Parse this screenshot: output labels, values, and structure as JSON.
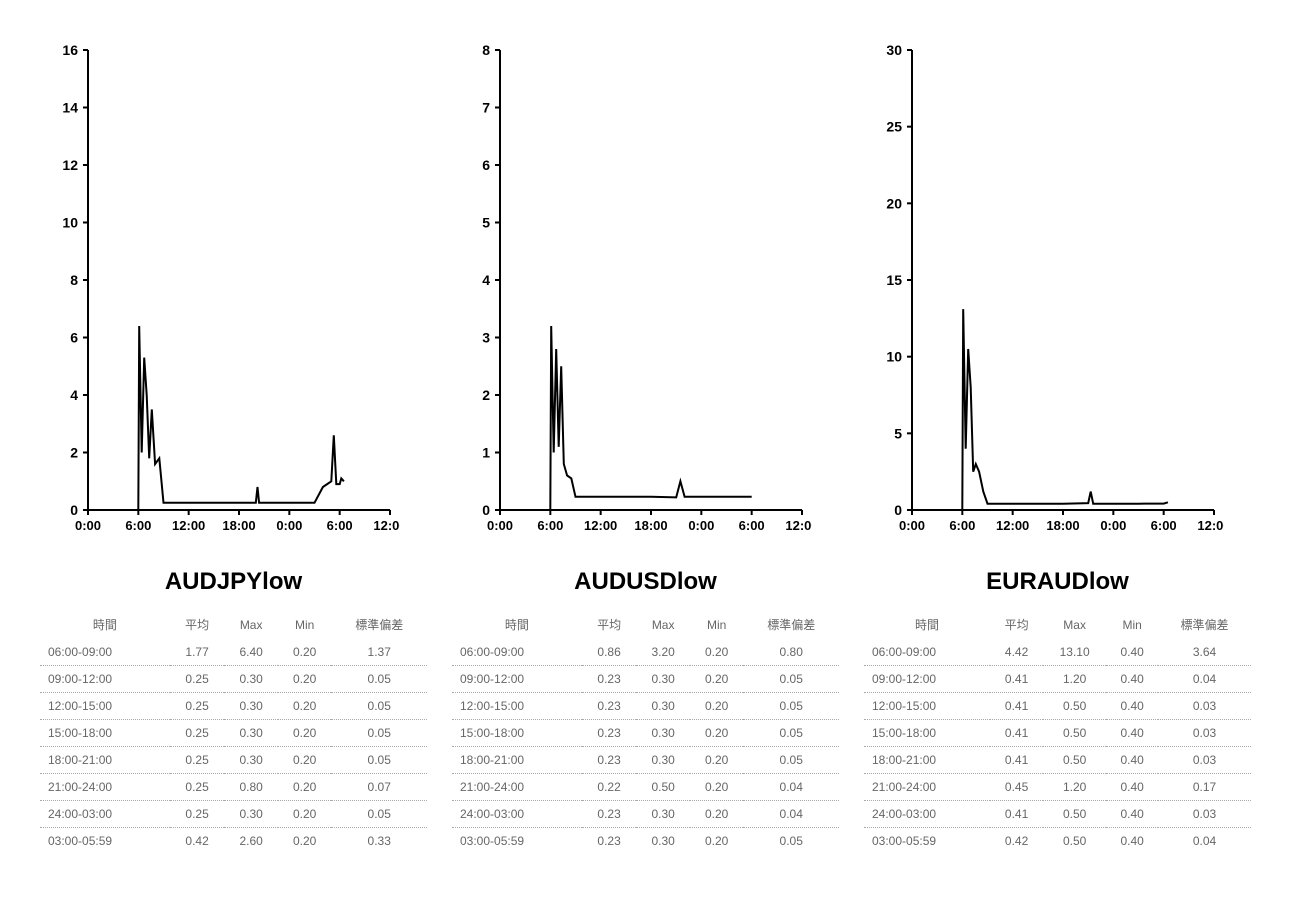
{
  "background_color": "#ffffff",
  "axis_color": "#000000",
  "line_color": "#000000",
  "text_color": "#666666",
  "dotted_border_color": "#aaaaaa",
  "table_headers": [
    "時間",
    "平均",
    "Max",
    "Min",
    "標準偏差"
  ],
  "x_labels": [
    "0:00",
    "6:00",
    "12:00",
    "18:00",
    "0:00",
    "6:00",
    "12:00"
  ],
  "x_ticks": [
    0,
    6,
    12,
    18,
    24,
    30,
    36
  ],
  "x_range": [
    0,
    36
  ],
  "panels": [
    {
      "title": "AUDJPYlow",
      "y_range": [
        0,
        16
      ],
      "y_tick_step": 2,
      "y_ticks": [
        0,
        2,
        4,
        6,
        8,
        10,
        12,
        14,
        16
      ],
      "series": [
        [
          0,
          0
        ],
        [
          6,
          0
        ],
        [
          6.1,
          6.4
        ],
        [
          6.4,
          2.0
        ],
        [
          6.7,
          5.3
        ],
        [
          7.0,
          4.0
        ],
        [
          7.3,
          1.8
        ],
        [
          7.6,
          3.5
        ],
        [
          8.0,
          1.6
        ],
        [
          8.5,
          1.8
        ],
        [
          9,
          0.25
        ],
        [
          12,
          0.25
        ],
        [
          15,
          0.25
        ],
        [
          18,
          0.25
        ],
        [
          20,
          0.25
        ],
        [
          20.2,
          0.8
        ],
        [
          20.4,
          0.25
        ],
        [
          22,
          0.25
        ],
        [
          24,
          0.25
        ],
        [
          27,
          0.25
        ],
        [
          28,
          0.8
        ],
        [
          29,
          1.0
        ],
        [
          29.3,
          2.6
        ],
        [
          29.6,
          0.9
        ],
        [
          30,
          0.9
        ],
        [
          30.2,
          1.1
        ],
        [
          30.5,
          1.0
        ]
      ],
      "rows": [
        [
          "06:00-09:00",
          "1.77",
          "6.40",
          "0.20",
          "1.37"
        ],
        [
          "09:00-12:00",
          "0.25",
          "0.30",
          "0.20",
          "0.05"
        ],
        [
          "12:00-15:00",
          "0.25",
          "0.30",
          "0.20",
          "0.05"
        ],
        [
          "15:00-18:00",
          "0.25",
          "0.30",
          "0.20",
          "0.05"
        ],
        [
          "18:00-21:00",
          "0.25",
          "0.30",
          "0.20",
          "0.05"
        ],
        [
          "21:00-24:00",
          "0.25",
          "0.80",
          "0.20",
          "0.07"
        ],
        [
          "24:00-03:00",
          "0.25",
          "0.30",
          "0.20",
          "0.05"
        ],
        [
          "03:00-05:59",
          "0.42",
          "2.60",
          "0.20",
          "0.33"
        ]
      ]
    },
    {
      "title": "AUDUSDlow",
      "y_range": [
        0,
        8
      ],
      "y_tick_step": 1,
      "y_ticks": [
        0,
        1,
        2,
        3,
        4,
        5,
        6,
        7,
        8
      ],
      "series": [
        [
          0,
          0
        ],
        [
          6,
          0
        ],
        [
          6.1,
          3.2
        ],
        [
          6.4,
          1.0
        ],
        [
          6.7,
          2.8
        ],
        [
          7.0,
          1.1
        ],
        [
          7.3,
          2.5
        ],
        [
          7.6,
          0.8
        ],
        [
          8.0,
          0.6
        ],
        [
          8.5,
          0.55
        ],
        [
          9,
          0.23
        ],
        [
          12,
          0.23
        ],
        [
          15,
          0.23
        ],
        [
          18,
          0.23
        ],
        [
          21,
          0.22
        ],
        [
          21.5,
          0.5
        ],
        [
          22,
          0.23
        ],
        [
          24,
          0.23
        ],
        [
          27,
          0.23
        ],
        [
          30,
          0.23
        ]
      ],
      "rows": [
        [
          "06:00-09:00",
          "0.86",
          "3.20",
          "0.20",
          "0.80"
        ],
        [
          "09:00-12:00",
          "0.23",
          "0.30",
          "0.20",
          "0.05"
        ],
        [
          "12:00-15:00",
          "0.23",
          "0.30",
          "0.20",
          "0.05"
        ],
        [
          "15:00-18:00",
          "0.23",
          "0.30",
          "0.20",
          "0.05"
        ],
        [
          "18:00-21:00",
          "0.23",
          "0.30",
          "0.20",
          "0.05"
        ],
        [
          "21:00-24:00",
          "0.22",
          "0.50",
          "0.20",
          "0.04"
        ],
        [
          "24:00-03:00",
          "0.23",
          "0.30",
          "0.20",
          "0.04"
        ],
        [
          "03:00-05:59",
          "0.23",
          "0.30",
          "0.20",
          "0.05"
        ]
      ]
    },
    {
      "title": "EURAUDlow",
      "y_range": [
        0,
        30
      ],
      "y_tick_step": 5,
      "y_ticks": [
        0,
        5,
        10,
        15,
        20,
        25,
        30
      ],
      "series": [
        [
          0,
          0
        ],
        [
          6,
          0
        ],
        [
          6.1,
          13.1
        ],
        [
          6.4,
          4.0
        ],
        [
          6.7,
          10.5
        ],
        [
          7.0,
          8.0
        ],
        [
          7.3,
          2.5
        ],
        [
          7.6,
          3.0
        ],
        [
          8.0,
          2.5
        ],
        [
          8.5,
          1.2
        ],
        [
          9,
          0.41
        ],
        [
          12,
          0.41
        ],
        [
          15,
          0.41
        ],
        [
          18,
          0.41
        ],
        [
          21,
          0.45
        ],
        [
          21.3,
          1.2
        ],
        [
          21.6,
          0.41
        ],
        [
          24,
          0.41
        ],
        [
          27,
          0.41
        ],
        [
          30,
          0.42
        ],
        [
          30.5,
          0.5
        ]
      ],
      "rows": [
        [
          "06:00-09:00",
          "4.42",
          "13.10",
          "0.40",
          "3.64"
        ],
        [
          "09:00-12:00",
          "0.41",
          "1.20",
          "0.40",
          "0.04"
        ],
        [
          "12:00-15:00",
          "0.41",
          "0.50",
          "0.40",
          "0.03"
        ],
        [
          "15:00-18:00",
          "0.41",
          "0.50",
          "0.40",
          "0.03"
        ],
        [
          "18:00-21:00",
          "0.41",
          "0.50",
          "0.40",
          "0.03"
        ],
        [
          "21:00-24:00",
          "0.45",
          "1.20",
          "0.40",
          "0.17"
        ],
        [
          "24:00-03:00",
          "0.41",
          "0.50",
          "0.40",
          "0.03"
        ],
        [
          "03:00-05:59",
          "0.42",
          "0.50",
          "0.40",
          "0.04"
        ]
      ]
    }
  ]
}
